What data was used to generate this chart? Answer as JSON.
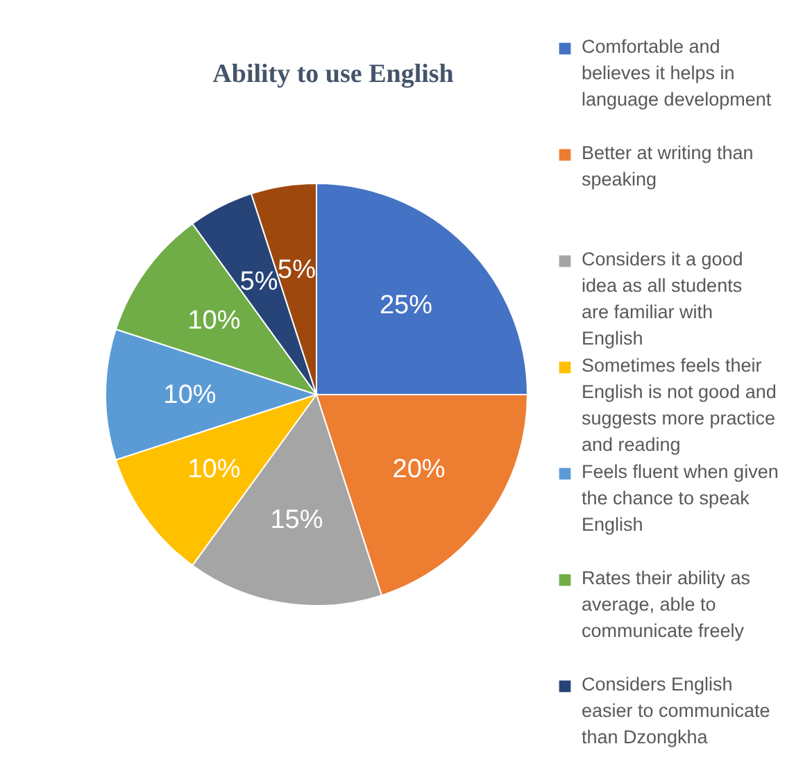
{
  "chart_data": {
    "type": "pie",
    "title": "Ability to use English",
    "categories": [
      "Comfortable and believes it helps in language development",
      "Better at writing than speaking",
      "Considers it a good idea as all students are familiar with English",
      "Sometimes feels their English is not good and suggests more practice and reading",
      "Feels fluent when given the chance to speak English",
      "Rates their ability as average, able to communicate freely",
      "Considers English easier to communicate than Dzongkha",
      null
    ],
    "values": [
      25,
      20,
      15,
      10,
      10,
      10,
      5,
      5
    ],
    "value_labels": [
      "25%",
      "20%",
      "15%",
      "10%",
      "10%",
      "10%",
      "5%",
      "5%"
    ],
    "colors": [
      "#4472c4",
      "#ed7d31",
      "#a5a5a5",
      "#ffc000",
      "#5b9bd5",
      "#70ad47",
      "#264478",
      "#9e480e"
    ],
    "legend": "right"
  }
}
